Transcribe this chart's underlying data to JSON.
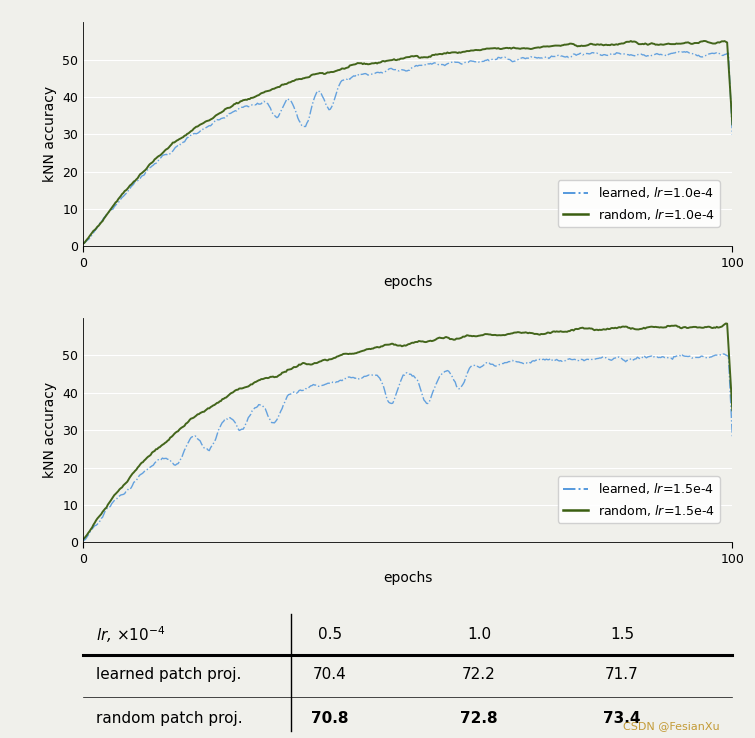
{
  "bg_color": "#f0f0eb",
  "plot_bg": "#f0f0eb",
  "green_color": "#3a5e10",
  "blue_color": "#5599dd",
  "ylim": [
    0,
    60
  ],
  "xlim": [
    0,
    100
  ],
  "yticks": [
    0,
    10,
    20,
    30,
    40,
    50
  ],
  "xticks": [
    0,
    100
  ],
  "xlabel": "epochs",
  "ylabel": "kNN accuracy",
  "legend1_blue": "learned, $lr$=1.0e-4",
  "legend1_green": "random, $lr$=1.0e-4",
  "legend2_blue": "learned, $lr$=1.5e-4",
  "legend2_green": "random, $lr$=1.5e-4",
  "table_header_col0": "$lr$, $\\times10^{-4}$",
  "table_header_cols": [
    "0.5",
    "1.0",
    "1.5"
  ],
  "table_row1_label": "learned patch proj.",
  "table_row2_label": "random patch proj.",
  "table_row1_vals": [
    "70.4",
    "72.2",
    "71.7"
  ],
  "table_row2_vals": [
    "70.8",
    "72.8",
    "73.4"
  ],
  "csdn_text": "CSDN @FesianXu",
  "csdn_color": "#b8860b"
}
